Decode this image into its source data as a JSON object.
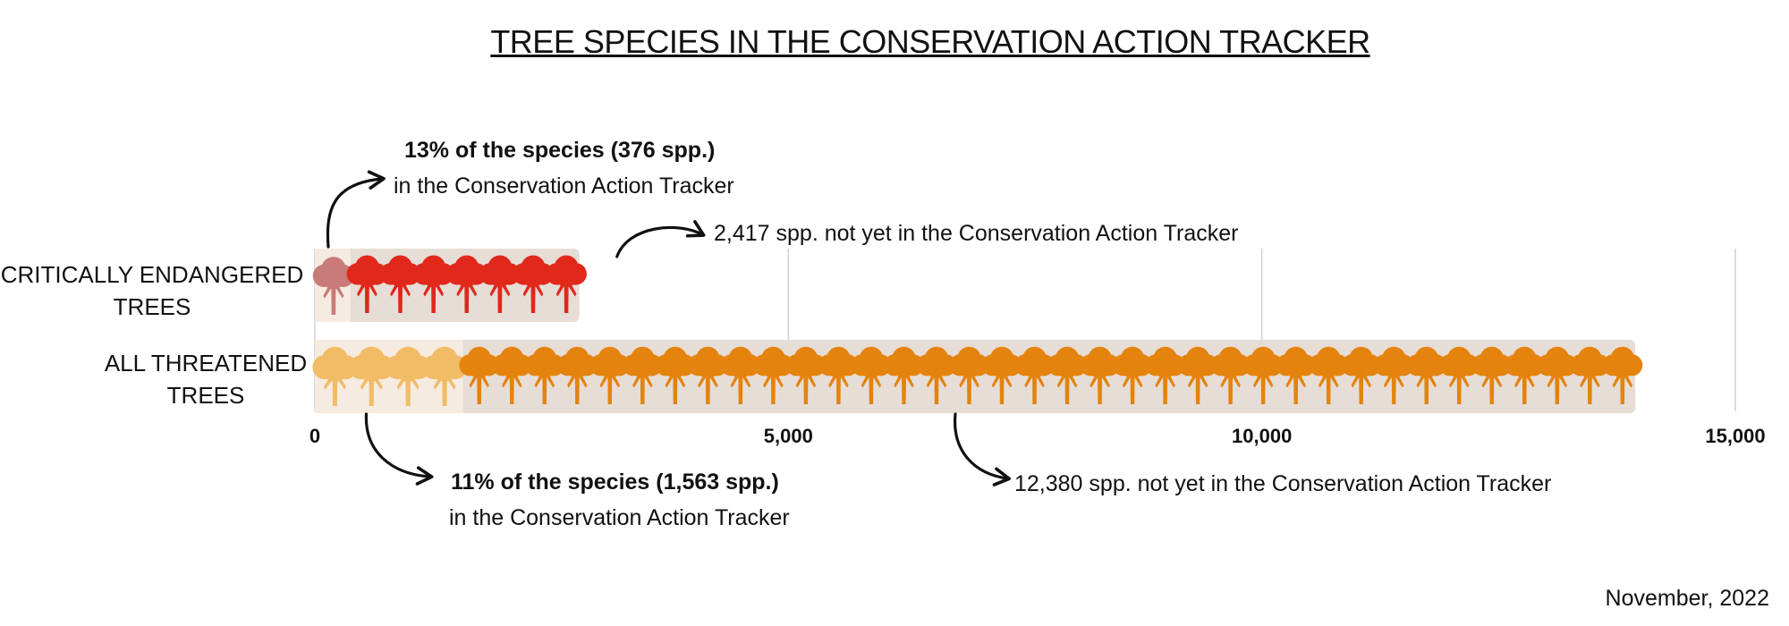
{
  "title": "TREE SPECIES IN THE CONSERVATION ACTION TRACKER",
  "date": "November, 2022",
  "colors": {
    "background_bar": "#e6ddd6",
    "in_tracker_bg": "#f6ebe0",
    "ce_in_tracker": "#c87b78",
    "ce_not_in_tracker": "#e0281b",
    "threatened_in_tracker": "#f2bb66",
    "threatened_not_in_tracker": "#e4830d"
  },
  "annotations": {
    "ce_in_bold": "13% of the species (376 spp.)",
    "ce_in_rest": "in the Conservation Action Tracker",
    "ce_not": "2,417 spp. not yet in the Conservation Action Tracker",
    "all_in_bold": "11% of the species (1,563 spp.)",
    "all_in_rest": "in the Conservation Action Tracker",
    "all_not": "12,380 spp. not yet in the Conservation Action Tracker"
  },
  "chart_data": {
    "type": "bar",
    "orientation": "horizontal",
    "stacked": true,
    "categories": [
      "CRITICALLY ENDANGERED TREES",
      "ALL THREATENED TREES"
    ],
    "category_lines": [
      [
        "CRITICALLY  ENDANGERED",
        "TREES"
      ],
      [
        "ALL THREATENED",
        "TREES"
      ]
    ],
    "series": [
      {
        "values": [
          376,
          1563
        ]
      },
      {
        "values": [
          2417,
          12380
        ]
      }
    ],
    "xlim": [
      0,
      15000
    ],
    "xticks": [
      0,
      5000,
      10000,
      15000
    ],
    "xtick_labels": [
      "0",
      "5,000",
      "10,000",
      "15,000"
    ],
    "grid": true
  }
}
